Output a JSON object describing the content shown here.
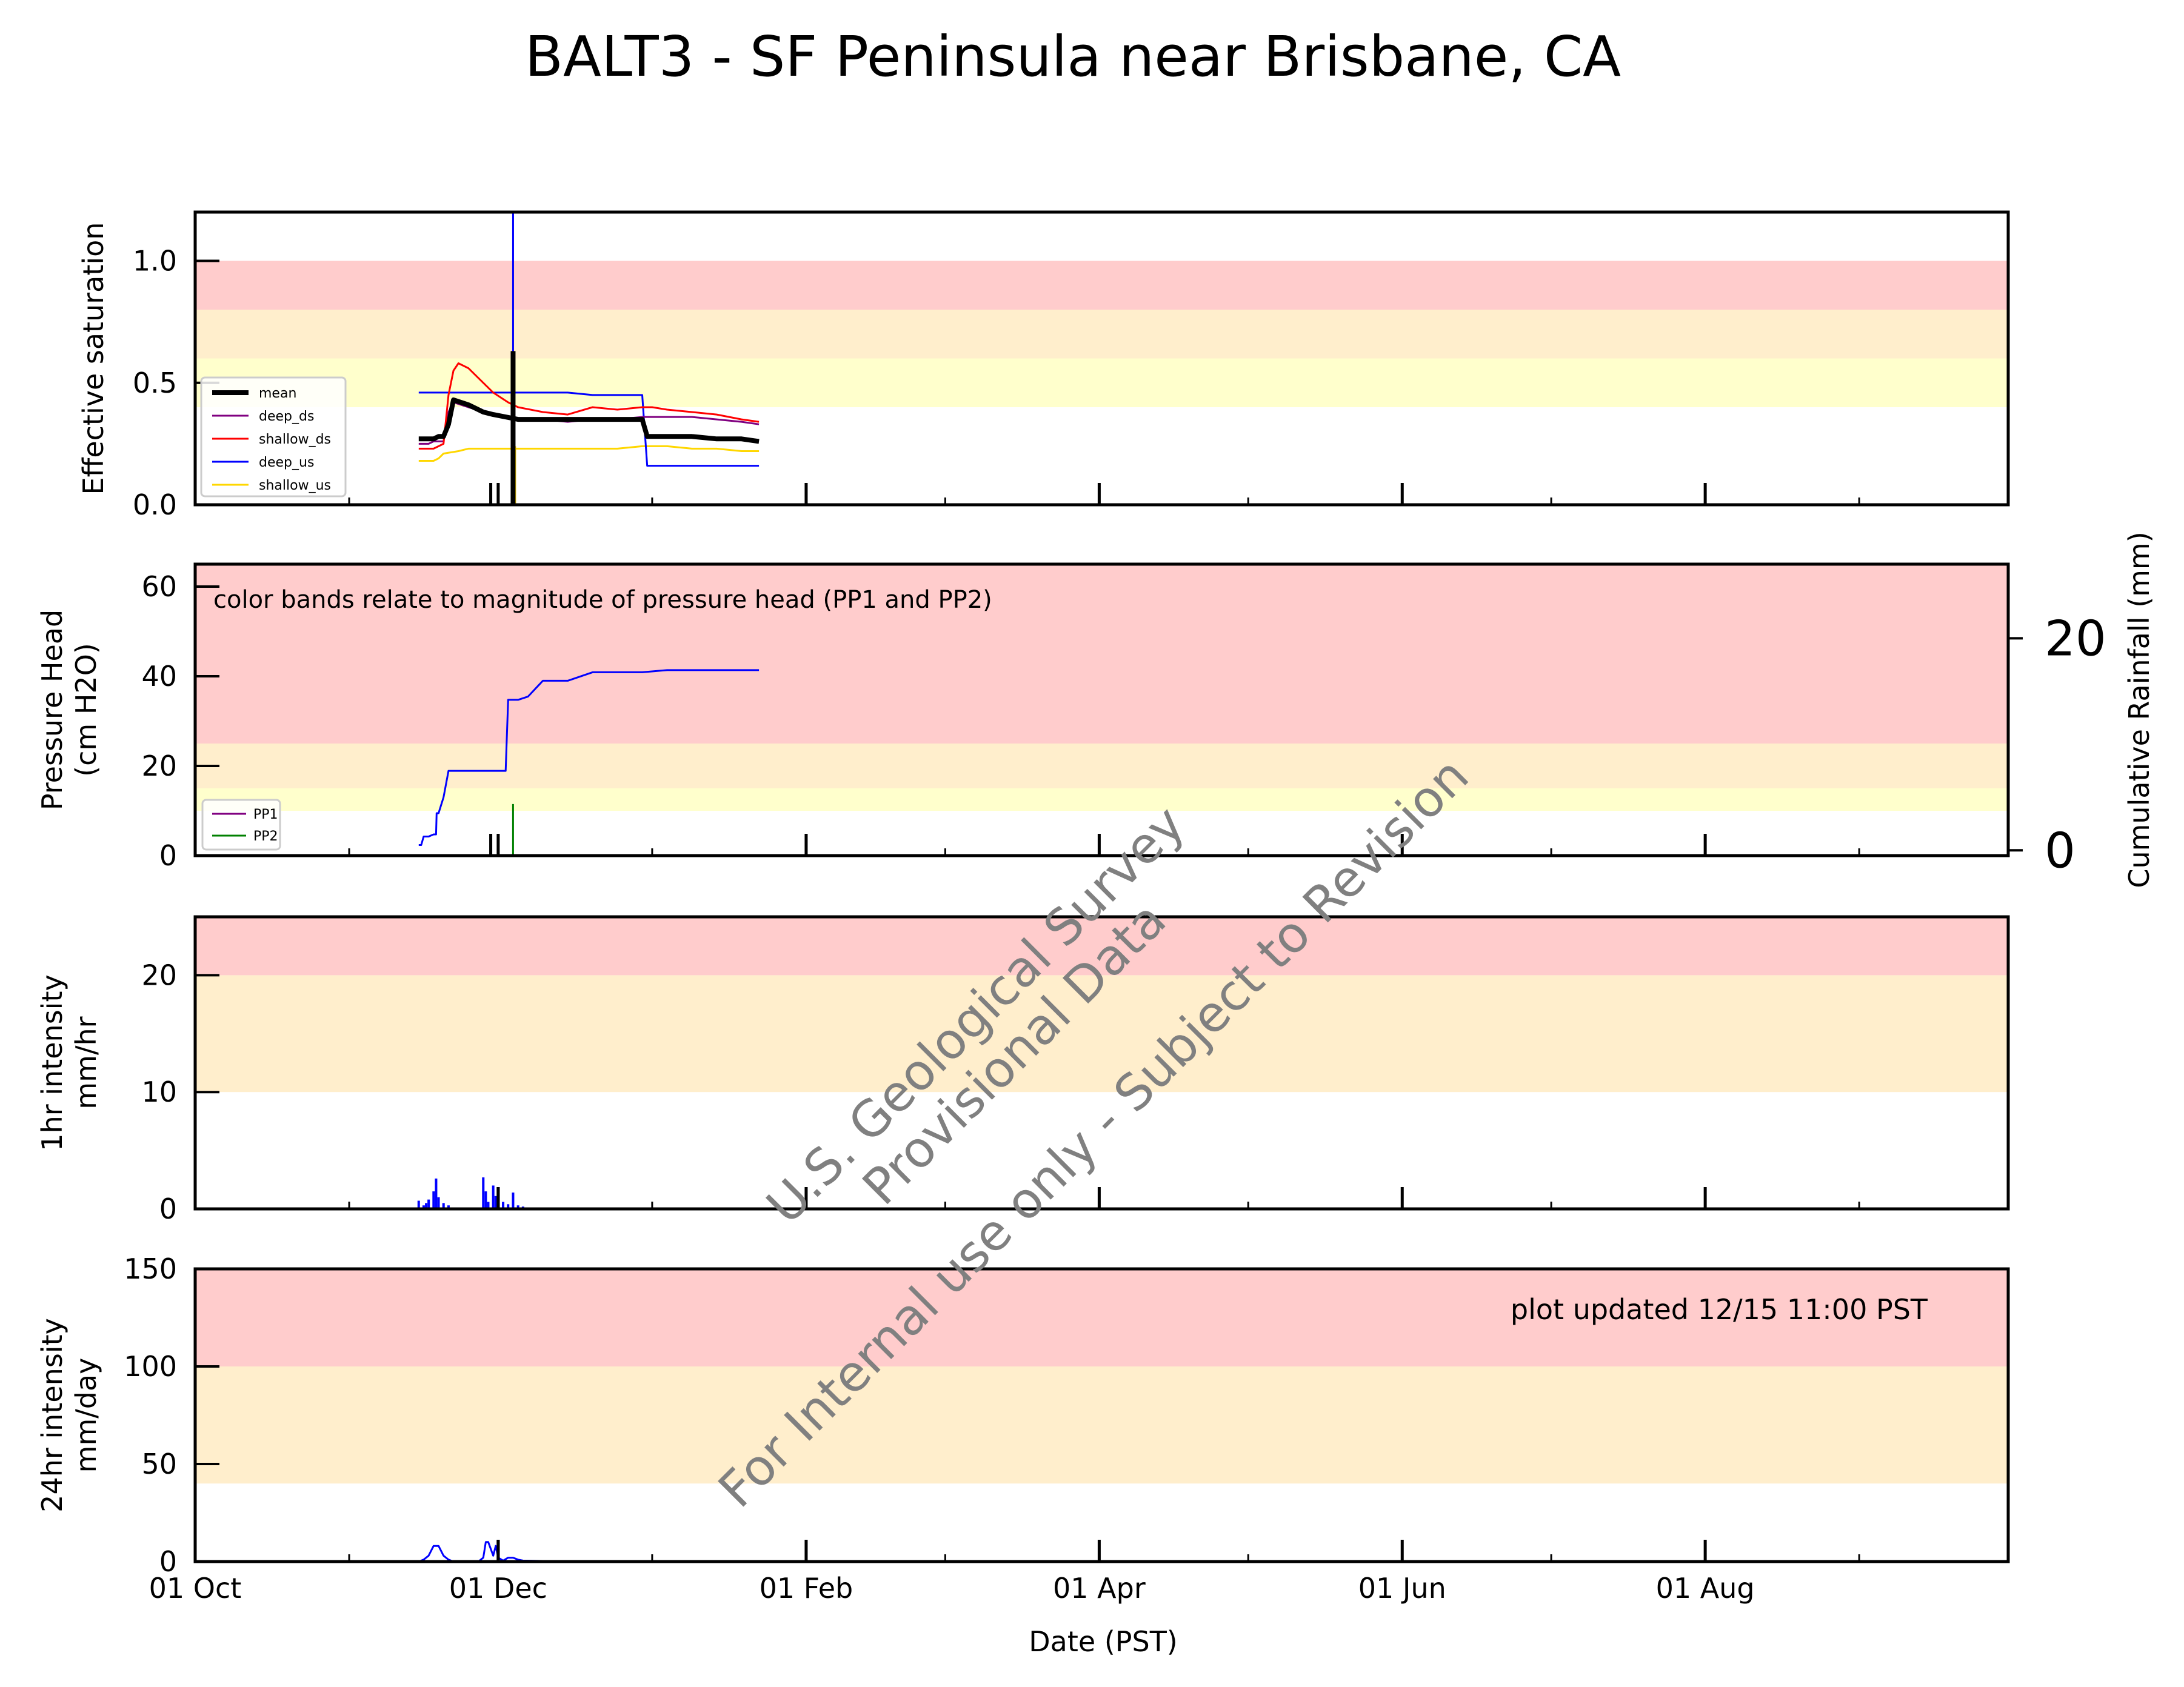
{
  "figure": {
    "title": "BALT3 - SF Peninsula near Brisbane, CA",
    "xlabel": "Date (PST)",
    "x_ticks": [
      "01 Oct",
      "01 Dec",
      "01 Feb",
      "01 Apr",
      "01 Jun",
      "01 Aug"
    ],
    "watermark": [
      "U.S. Geological Survey",
      "Provisional Data",
      "For Internal use only - Subject to Revision"
    ],
    "note": "plot updated 12/15 11:00  PST"
  },
  "chart_data": [
    {
      "type": "line",
      "id": "saturation",
      "ylabel": [
        "Effective saturation"
      ],
      "ylim": [
        0,
        1.2
      ],
      "yticks": [
        0.0,
        0.5,
        1.0
      ],
      "ytick_labels": [
        "0.0",
        "0.5",
        "1.0"
      ],
      "xrange_days": [
        0,
        365
      ],
      "bands": [
        {
          "from": 0.4,
          "to": 0.6,
          "color": "#ffffcc"
        },
        {
          "from": 0.6,
          "to": 0.8,
          "color": "#ffeecc"
        },
        {
          "from": 0.8,
          "to": 1.0,
          "color": "#ffcccc"
        }
      ],
      "legend": {
        "position": "lower-left",
        "entries": [
          "mean",
          "deep_ds",
          "shallow_ds",
          "deep_us",
          "shallow_us"
        ]
      },
      "series": [
        {
          "name": "shallow_us",
          "color": "#ffd700",
          "width": 3,
          "x": [
            45,
            48,
            49,
            50,
            53,
            55,
            58,
            62,
            65,
            70,
            75,
            80,
            85,
            90,
            90,
            91,
            92,
            95,
            100,
            105,
            110,
            113.5
          ],
          "y": [
            0.18,
            0.18,
            0.19,
            0.21,
            0.22,
            0.23,
            0.23,
            0.23,
            0.23,
            0.23,
            0.23,
            0.23,
            0.23,
            0.24,
            0.24,
            0.24,
            0.24,
            0.24,
            0.23,
            0.23,
            0.22,
            0.22
          ]
        },
        {
          "name": "deep_us",
          "color": "#0000ff",
          "width": 3,
          "x": [
            45,
            52,
            56,
            60,
            65,
            70,
            75,
            80,
            85,
            90,
            91,
            92,
            95,
            100,
            105,
            110,
            113.5
          ],
          "y": [
            0.46,
            0.46,
            0.46,
            0.46,
            0.46,
            0.46,
            0.46,
            0.45,
            0.45,
            0.45,
            0.16,
            0.16,
            0.16,
            0.16,
            0.16,
            0.16,
            0.16
          ]
        },
        {
          "name": "deep_ds",
          "color": "#800080",
          "width": 3,
          "x": [
            45,
            47,
            48,
            49,
            50,
            51,
            52,
            55,
            60,
            65,
            70,
            75,
            80,
            85,
            90,
            91,
            92,
            95,
            100,
            105,
            110,
            113.5
          ],
          "y": [
            0.25,
            0.25,
            0.26,
            0.26,
            0.26,
            0.38,
            0.42,
            0.4,
            0.37,
            0.35,
            0.35,
            0.34,
            0.35,
            0.35,
            0.36,
            0.36,
            0.36,
            0.36,
            0.36,
            0.35,
            0.34,
            0.33
          ]
        },
        {
          "name": "shallow_ds",
          "color": "#ff0000",
          "width": 3,
          "x": [
            45,
            47,
            48,
            49,
            50,
            51,
            52,
            53,
            55,
            58,
            60,
            63,
            65,
            70,
            75,
            80,
            85,
            90,
            91,
            92,
            95,
            100,
            105,
            110,
            113.5
          ],
          "y": [
            0.23,
            0.23,
            0.23,
            0.24,
            0.25,
            0.45,
            0.55,
            0.58,
            0.56,
            0.5,
            0.46,
            0.42,
            0.4,
            0.38,
            0.37,
            0.4,
            0.39,
            0.4,
            0.4,
            0.4,
            0.39,
            0.38,
            0.37,
            0.35,
            0.34
          ]
        },
        {
          "name": "mean",
          "color": "#000000",
          "width": 8,
          "x": [
            45,
            47,
            48,
            49,
            50,
            51,
            52,
            55,
            58,
            60,
            65,
            70,
            75,
            80,
            85,
            90,
            91,
            92,
            95,
            100,
            105,
            110,
            113.5
          ],
          "y": [
            0.27,
            0.27,
            0.27,
            0.28,
            0.28,
            0.33,
            0.43,
            0.41,
            0.38,
            0.37,
            0.35,
            0.35,
            0.35,
            0.35,
            0.35,
            0.35,
            0.28,
            0.28,
            0.28,
            0.28,
            0.27,
            0.27,
            0.26
          ]
        }
      ],
      "spike": {
        "day": 64,
        "mean_peak": 0.63,
        "mean_low": 0,
        "deep_us_peak": 1.2,
        "shallow_us_low": 0
      },
      "tick_marks": {
        "vertical_days": [
          59.5,
          64
        ]
      }
    },
    {
      "type": "line",
      "id": "pressure",
      "ylabel": [
        "Pressure Head",
        "(cm H2O)"
      ],
      "ylim": [
        0,
        65
      ],
      "yticks": [
        0,
        20,
        40,
        60
      ],
      "ytick_labels": [
        "0",
        "20",
        "40",
        "60"
      ],
      "y2label": "Cumulative Rainfall (mm)",
      "y2lim": [
        -0.5,
        27
      ],
      "y2ticks": [
        0,
        20
      ],
      "y2tick_labels": [
        "0",
        "20"
      ],
      "xrange_days": [
        0,
        365
      ],
      "bands": [
        {
          "from": 10,
          "to": 15,
          "color": "#ffffcc"
        },
        {
          "from": 15,
          "to": 25,
          "color": "#ffeecc"
        },
        {
          "from": 25,
          "to": 65,
          "color": "#ffcccc"
        }
      ],
      "annotation": "color bands relate to magnitude of pressure head (PP1 and PP2)",
      "legend": {
        "position": "lower-left",
        "entries": [
          "PP1",
          "PP2"
        ]
      },
      "series": [
        {
          "name": "PP1",
          "color": "#800080",
          "x": [],
          "y": []
        },
        {
          "name": "PP2",
          "color": "#008000",
          "x": [
            64,
            64
          ],
          "y": [
            0,
            11.5
          ]
        }
      ],
      "rainfall": {
        "color": "#0000ff",
        "x": [
          45,
          45.5,
          46,
          47,
          48,
          48.5,
          48.6,
          49,
          50,
          51,
          55,
          60,
          62,
          62.5,
          63,
          64,
          64.5,
          65,
          67,
          70,
          75,
          80,
          85,
          90,
          95,
          100,
          103,
          113.5
        ],
        "y": [
          0.5,
          0.5,
          1.3,
          1.3,
          1.5,
          1.5,
          3.5,
          3.5,
          5,
          7.5,
          7.5,
          7.5,
          7.5,
          7.5,
          14.2,
          14.2,
          14.2,
          14.2,
          14.5,
          16.0,
          16.0,
          16.8,
          16.8,
          16.8,
          17.0,
          17.0,
          17.0,
          17.0
        ]
      }
    },
    {
      "type": "bar",
      "id": "intensity_1hr",
      "ylabel": [
        "1hr intensity",
        "mm/hr"
      ],
      "ylim": [
        0,
        25
      ],
      "yticks": [
        0,
        10,
        20
      ],
      "ytick_labels": [
        "0",
        "10",
        "20"
      ],
      "xrange_days": [
        0,
        365
      ],
      "bands": [
        {
          "from": 10,
          "to": 20,
          "color": "#ffeecc"
        },
        {
          "from": 20,
          "to": 25,
          "color": "#ffcccc"
        }
      ],
      "series": [
        {
          "name": "1hr",
          "color": "#0000ff",
          "x": [
            45,
            46,
            46.5,
            47,
            48,
            48.5,
            49,
            50,
            51,
            58,
            58.5,
            59,
            60,
            60.5,
            61,
            62,
            63,
            64,
            65,
            66,
            67,
            70,
            72,
            75
          ],
          "y": [
            0.7,
            0.3,
            0.5,
            0.8,
            1.5,
            2.6,
            1.0,
            0.5,
            0.3,
            2.7,
            1.5,
            0.6,
            2.0,
            1.1,
            0.3,
            0.6,
            0.4,
            1.4,
            0.3,
            0.2,
            0.1,
            0.1,
            0.1,
            0.1
          ]
        }
      ]
    },
    {
      "type": "area",
      "id": "intensity_24hr",
      "ylabel": [
        "24hr intensity",
        "mm/day"
      ],
      "ylim": [
        0,
        150
      ],
      "yticks": [
        0,
        50,
        100,
        150
      ],
      "ytick_labels": [
        "0",
        "50",
        "100",
        "150"
      ],
      "xrange_days": [
        0,
        365
      ],
      "bands": [
        {
          "from": 40,
          "to": 100,
          "color": "#ffeecc"
        },
        {
          "from": 100,
          "to": 150,
          "color": "#ffcccc"
        }
      ],
      "series": [
        {
          "name": "24hr",
          "color": "#0000ff",
          "x": [
            45,
            46,
            47,
            48,
            49,
            50,
            51,
            52,
            55,
            57,
            58,
            58.5,
            59,
            60,
            60.5,
            61,
            62,
            63,
            64,
            65,
            66,
            70,
            75
          ],
          "y": [
            0,
            1,
            3,
            8,
            8,
            3,
            1,
            0,
            0,
            0,
            2,
            10,
            10,
            3,
            8,
            2,
            0.5,
            2,
            2,
            1,
            0.5,
            0.3,
            0
          ]
        }
      ]
    }
  ]
}
